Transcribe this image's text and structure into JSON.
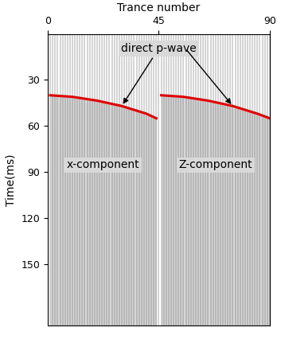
{
  "chart_data": {
    "type": "wiggle",
    "x_label": "Trance number",
    "y_label": "Time(ms)",
    "xlim": [
      0,
      90
    ],
    "xticks": [
      0,
      45,
      90
    ],
    "ylim": [
      0,
      190
    ],
    "yticks": [
      30,
      60,
      90,
      120,
      150
    ],
    "annotations": [
      {
        "text": "direct p-wave"
      }
    ],
    "series": [
      {
        "name": "x-component",
        "color": "#e00000",
        "line_style": "solid",
        "x": [
          1,
          10,
          20,
          30,
          40,
          44
        ],
        "values": [
          40,
          41,
          43.5,
          47,
          52,
          55
        ]
      },
      {
        "name": "Z-component",
        "color": "#e00000",
        "line_style": "solid",
        "x": [
          46,
          55,
          65,
          75,
          85,
          90
        ],
        "values": [
          40,
          41,
          43.5,
          47,
          52,
          55
        ]
      }
    ]
  }
}
